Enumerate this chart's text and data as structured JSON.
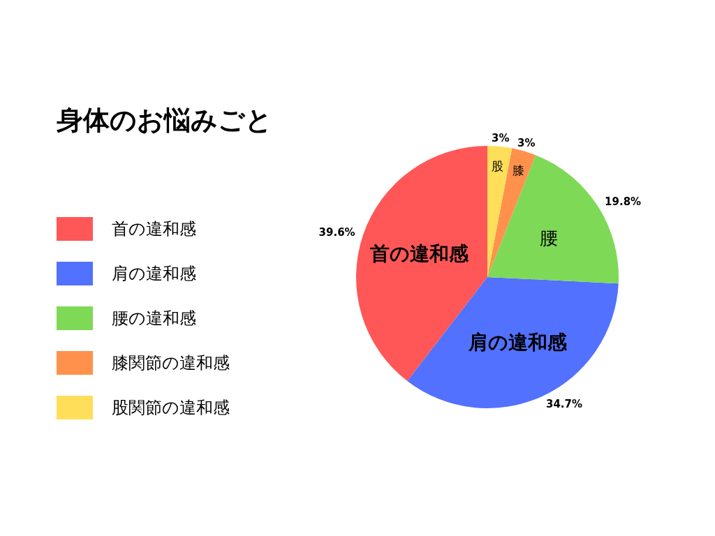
{
  "chart_data": {
    "type": "pie",
    "title": "身体のお悩みごと",
    "categories": [
      "首の違和感",
      "肩の違和感",
      "腰の違和感",
      "膝関節の違和感",
      "股関節の違和感"
    ],
    "values": [
      39.6,
      34.7,
      19.8,
      3,
      3
    ],
    "value_labels": [
      "39.6%",
      "34.7%",
      "19.8%",
      "3%",
      "3%"
    ],
    "colors": [
      "#ff5757",
      "#5271ff",
      "#7ed957",
      "#ff914d",
      "#ffde59"
    ],
    "annotations": [
      "首の違和感",
      "肩の違和感",
      "腰",
      "膝",
      "股"
    ],
    "legend": "left"
  }
}
